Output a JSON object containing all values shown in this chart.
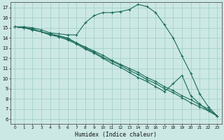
{
  "xlabel": "Humidex (Indice chaleur)",
  "xlim": [
    -0.5,
    23.5
  ],
  "ylim": [
    5.5,
    17.5
  ],
  "xticks": [
    0,
    1,
    2,
    3,
    4,
    5,
    6,
    7,
    8,
    9,
    10,
    11,
    12,
    13,
    14,
    15,
    16,
    17,
    18,
    19,
    20,
    21,
    22,
    23
  ],
  "yticks": [
    6,
    7,
    8,
    9,
    10,
    11,
    12,
    13,
    14,
    15,
    16,
    17
  ],
  "bg_color": "#cce8e4",
  "grid_color": "#9eccc5",
  "line_color": "#1a6b5a",
  "lines": [
    [
      15.1,
      15.1,
      15.0,
      14.8,
      14.5,
      14.4,
      14.3,
      14.3,
      15.5,
      16.2,
      16.5,
      16.5,
      16.6,
      16.8,
      17.3,
      17.1,
      16.5,
      15.3,
      14.0,
      12.2,
      10.5,
      8.5,
      7.2,
      6.3
    ],
    [
      15.1,
      15.0,
      14.9,
      14.6,
      14.3,
      14.2,
      14.0,
      13.5,
      13.0,
      12.6,
      12.1,
      11.7,
      11.3,
      10.8,
      10.4,
      9.9,
      9.5,
      9.0,
      8.6,
      8.1,
      7.6,
      7.2,
      6.8,
      6.3
    ],
    [
      15.1,
      15.0,
      14.8,
      14.6,
      14.4,
      14.2,
      13.9,
      13.5,
      13.1,
      12.7,
      12.3,
      11.8,
      11.4,
      11.0,
      10.6,
      10.1,
      9.7,
      9.2,
      8.8,
      8.3,
      7.9,
      7.4,
      7.0,
      6.3
    ],
    [
      15.1,
      15.0,
      14.8,
      14.6,
      14.3,
      14.1,
      13.8,
      13.4,
      12.9,
      12.5,
      12.0,
      11.5,
      11.1,
      10.6,
      10.1,
      9.7,
      9.2,
      8.7,
      9.5,
      10.3,
      8.3,
      7.5,
      6.8,
      6.3
    ]
  ],
  "marker": "+",
  "marker_size": 3,
  "marker_every": [
    1,
    1,
    1,
    1
  ],
  "line_width": 0.8
}
